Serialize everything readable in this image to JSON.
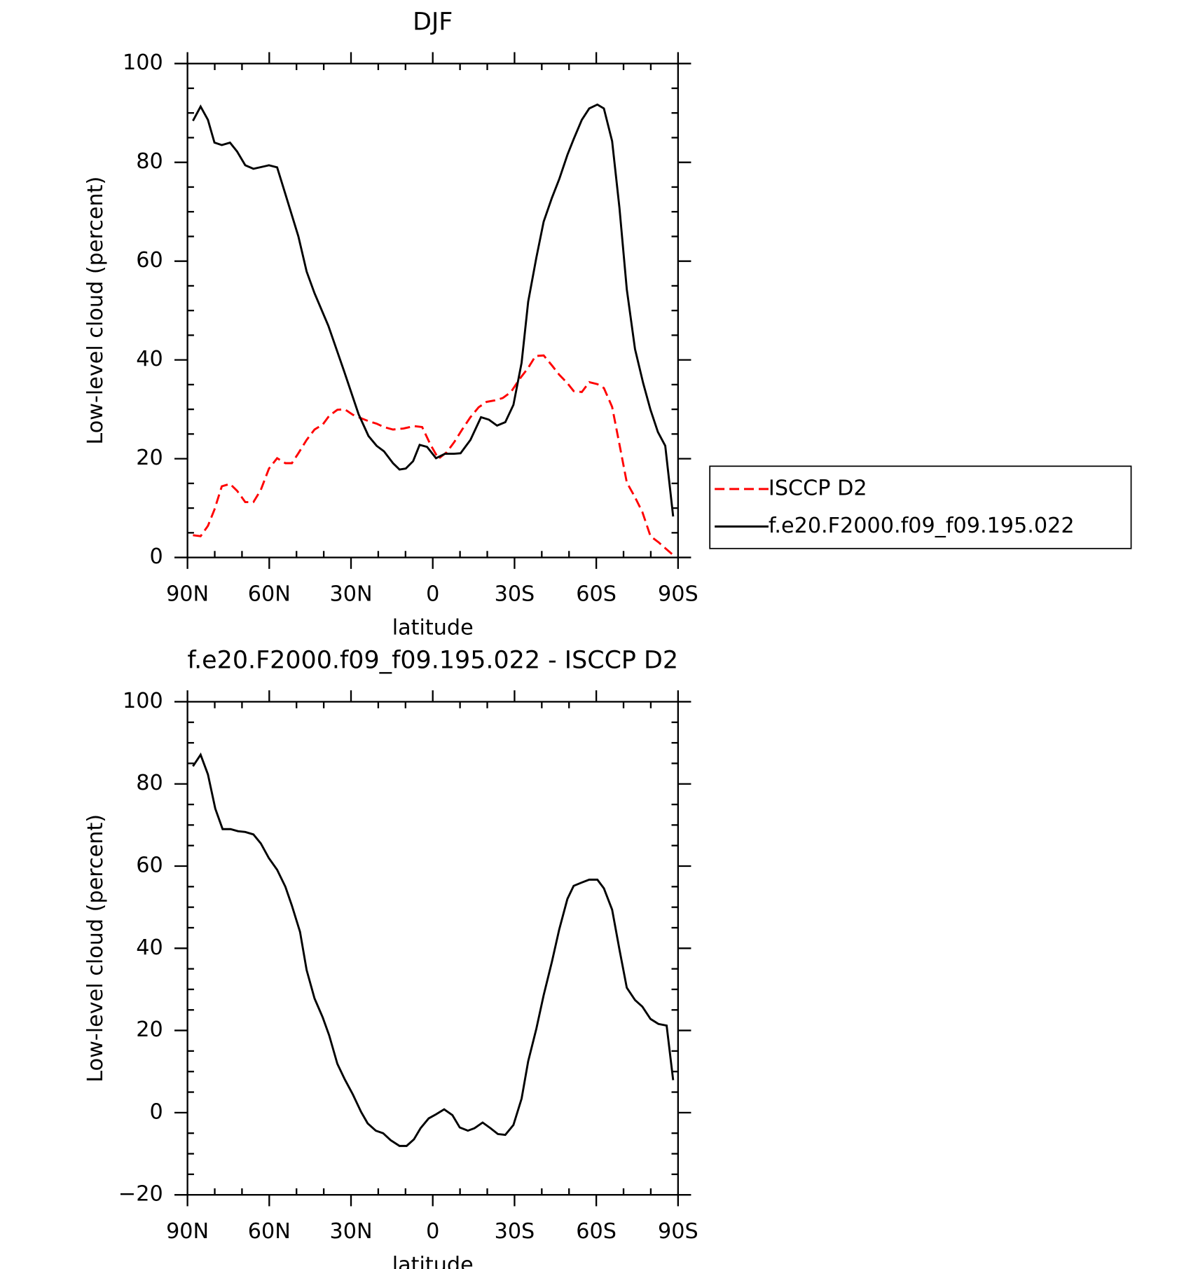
{
  "chart_data": [
    {
      "type": "line",
      "title": "DJF",
      "xlabel": "latitude",
      "ylabel": "Low-level cloud (percent)",
      "xlim": [
        90,
        -90
      ],
      "xticks": [
        {
          "value": 90,
          "label": "90N"
        },
        {
          "value": 60,
          "label": "60N"
        },
        {
          "value": 30,
          "label": "30N"
        },
        0,
        {
          "value": -30,
          "label": "30S"
        },
        {
          "value": -60,
          "label": "60S"
        },
        {
          "value": -90,
          "label": "90S"
        }
      ],
      "ylim": [
        0,
        100
      ],
      "yticks": [
        0,
        20,
        40,
        60,
        80,
        100
      ],
      "legend": "right",
      "series": [
        {
          "name": "ISCCP D2",
          "color": "#ff0000",
          "line_style": "dashed",
          "x": [
            88,
            85.2,
            82.5,
            80.1,
            77.4,
            74.4,
            71.8,
            68.8,
            65.8,
            63.1,
            60.1,
            57.1,
            54.1,
            51.7,
            49.3,
            46.3,
            43.4,
            40.4,
            38,
            35,
            32.3,
            29.3,
            26.3,
            23.6,
            20.6,
            17.9,
            14.6,
            10.8,
            6.9,
            3.9,
            0.9,
            -2.1,
            -5.1,
            -7.8,
            -10.8,
            -13.8,
            -16.8,
            -19.7,
            -22.7,
            -25.7,
            -28.7,
            -31.7,
            -35,
            -37.7,
            -40.7,
            -43.7,
            -46.4,
            -49.4,
            -51.7,
            -54.7,
            -57.4,
            -60.4,
            -62.8,
            -65.8,
            -68.5,
            -71.2,
            -74.2,
            -76.9,
            -79.9,
            -82.8,
            -85.5,
            -88.2
          ],
          "values": [
            4.5,
            4.3,
            6.4,
            9.7,
            14.4,
            14.9,
            13.5,
            11.2,
            11.2,
            13.7,
            18,
            20.1,
            19.1,
            19.1,
            21.1,
            23.8,
            25.9,
            26.9,
            28.7,
            29.9,
            30,
            28.9,
            28.2,
            27.6,
            27.1,
            26.4,
            25.9,
            26.1,
            26.6,
            26.4,
            22.9,
            20,
            21.3,
            23.3,
            25.9,
            28.4,
            30.4,
            31.5,
            31.8,
            32.3,
            33.5,
            36,
            38.4,
            40.8,
            40.9,
            38.9,
            37,
            35.3,
            33.7,
            33.5,
            35.5,
            35.1,
            34.3,
            30.5,
            22.9,
            15.2,
            12.2,
            9.2,
            4.3,
            3.1,
            1.8,
            0.5
          ]
        },
        {
          "name": "f.e20.F2000.f09_f09.195.022",
          "color": "#000000",
          "line_style": "solid",
          "x": [
            88,
            85.2,
            82.5,
            80.1,
            77.4,
            74.4,
            71.8,
            68.8,
            65.8,
            60.1,
            57.1,
            54.1,
            49.3,
            46.3,
            43.4,
            38.3,
            32.6,
            27.2,
            23.6,
            20.6,
            17.9,
            14.6,
            12.2,
            9.9,
            7.2,
            4.8,
            2.1,
            -1.2,
            -4.5,
            -7.8,
            -10.2,
            -13.8,
            -17.7,
            -20.6,
            -23.6,
            -26.6,
            -29.6,
            -32.6,
            -35,
            -38,
            -40.7,
            -43.7,
            -46.4,
            -49.4,
            -51.7,
            -54.7,
            -57.4,
            -60.4,
            -62.8,
            -65.8,
            -68.5,
            -71.2,
            -74.2,
            -77.2,
            -79.9,
            -82.6,
            -85.3,
            -88.2
          ],
          "values": [
            88.4,
            91.3,
            88.6,
            84,
            83.5,
            84,
            82.2,
            79.4,
            78.7,
            79.4,
            79,
            73.6,
            65,
            57.9,
            53.5,
            46.9,
            37.8,
            29,
            24.6,
            22.6,
            21.5,
            19.1,
            17.8,
            18,
            19.5,
            22.8,
            22.4,
            20.1,
            21,
            21,
            21.1,
            23.8,
            28.4,
            27.9,
            26.7,
            27.4,
            30.9,
            39.4,
            51.8,
            60.7,
            68,
            72.8,
            76.6,
            81.5,
            84.7,
            88.6,
            90.9,
            91.7,
            90.9,
            84.3,
            70.8,
            54.3,
            42.2,
            35.3,
            29.9,
            25.4,
            22.6,
            8.3
          ]
        }
      ]
    },
    {
      "type": "line",
      "title": "f.e20.F2000.f09_f09.195.022 - ISCCP D2",
      "xlabel": "latitude",
      "ylabel": "Low-level cloud (percent)",
      "xlim": [
        90,
        -90
      ],
      "xticks": [
        {
          "value": 90,
          "label": "90N"
        },
        {
          "value": 60,
          "label": "60N"
        },
        {
          "value": 30,
          "label": "30N"
        },
        0,
        {
          "value": -30,
          "label": "30S"
        },
        {
          "value": -60,
          "label": "60S"
        },
        {
          "value": -90,
          "label": "90S"
        }
      ],
      "ylim": [
        -20,
        100
      ],
      "yticks": [
        {
          "value": -20,
          "label": "−20"
        },
        0,
        20,
        40,
        60,
        80,
        100
      ],
      "series": [
        {
          "color": "#000000",
          "line_style": "solid",
          "x": [
            88,
            85.2,
            82.5,
            79.8,
            77.1,
            74.2,
            71.5,
            68.8,
            65.8,
            63.1,
            60.1,
            57.1,
            54.1,
            51.7,
            48.7,
            46.3,
            43.4,
            40.4,
            38,
            35,
            32.3,
            29.3,
            26.3,
            23.9,
            20.9,
            18.2,
            15.5,
            12.2,
            9.6,
            6.9,
            4.5,
            1.5,
            -1.2,
            -4.2,
            -7.2,
            -9.9,
            -12.9,
            -15.3,
            -18.3,
            -21.2,
            -23.9,
            -26.6,
            -29.6,
            -32.6,
            -35,
            -38,
            -40.7,
            -43.7,
            -46.4,
            -49.4,
            -51.7,
            -54.7,
            -57.4,
            -60.4,
            -62.8,
            -65.8,
            -68.5,
            -71.2,
            -74.2,
            -76.9,
            -79.9,
            -82.8,
            -85.8,
            -88.2
          ],
          "values": [
            84.3,
            87.1,
            82.3,
            74,
            69,
            69,
            68.5,
            68.3,
            67.7,
            65.5,
            61.9,
            59.1,
            55,
            50.4,
            44,
            34.7,
            27.8,
            23.2,
            18.8,
            11.9,
            8.1,
            4.4,
            0.2,
            -2.6,
            -4.4,
            -5,
            -6.7,
            -8.1,
            -8.1,
            -6.5,
            -3.8,
            -1.4,
            -0.4,
            0.8,
            -0.6,
            -3.6,
            -4.4,
            -3.8,
            -2.4,
            -3.8,
            -5.2,
            -5.4,
            -3,
            3.4,
            12.5,
            20.4,
            28.6,
            36.7,
            44.6,
            52,
            55.2,
            56,
            56.7,
            56.7,
            54.6,
            49.4,
            39.7,
            30.4,
            27.4,
            25.8,
            22.8,
            21.6,
            21.2,
            7.9
          ]
        }
      ]
    }
  ]
}
